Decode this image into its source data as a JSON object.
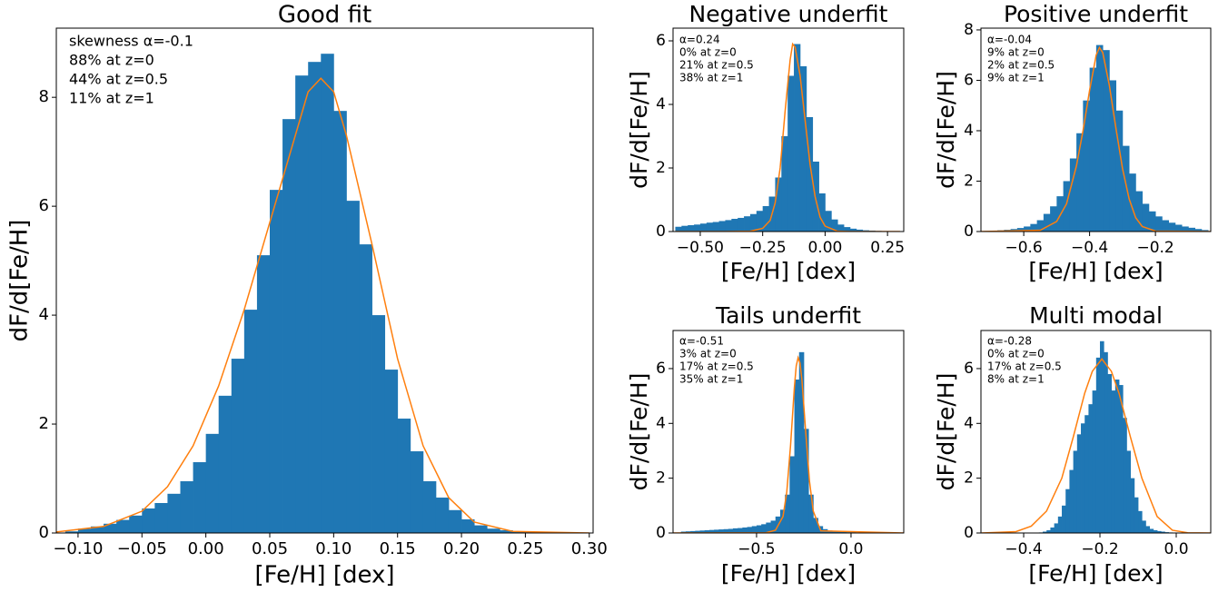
{
  "chart_data": [
    {
      "type": "histogram",
      "title": "Good fit",
      "x_label": "[Fe/H] [dex]",
      "y_label": "dF/d[Fe/H]",
      "color": "#1f77b4",
      "annotations": [
        "skewness α=-0.1",
        "88% at z=0",
        "44% at z=0.5",
        "11% at z=1"
      ],
      "bins": [
        -0.12,
        -0.11,
        -0.1,
        -0.09,
        -0.08,
        -0.07,
        -0.06,
        -0.05,
        -0.04,
        -0.03,
        -0.02,
        -0.01,
        0,
        0.01,
        0.02,
        0.03,
        0.04,
        0.05,
        0.06,
        0.07,
        0.08,
        0.09,
        0.1,
        0.11,
        0.12,
        0.13,
        0.14,
        0.15,
        0.16,
        0.17,
        0.18,
        0.19,
        0.2,
        0.21,
        0.22,
        0.23,
        0.24,
        0.25,
        0.26,
        0.27,
        0.28,
        0.29,
        0.3
      ],
      "counts": [
        0,
        0.03,
        0.08,
        0.12,
        0.17,
        0.24,
        0.32,
        0.45,
        0.55,
        0.72,
        0.95,
        1.3,
        1.82,
        2.52,
        3.2,
        4.1,
        5.1,
        6.3,
        7.6,
        8.4,
        8.65,
        8.8,
        7.75,
        6.1,
        5.3,
        4.0,
        3.0,
        2.1,
        1.5,
        0.95,
        0.65,
        0.42,
        0.25,
        0.14,
        0.08,
        0.05,
        0.03,
        0.02,
        0.01,
        0.005,
        0.005,
        0.005
      ],
      "fit": {
        "color": "#ff7f0e",
        "x": [
          -0.12,
          -0.08,
          -0.05,
          -0.03,
          -0.01,
          0.01,
          0.03,
          0.05,
          0.07,
          0.08,
          0.09,
          0.1,
          0.11,
          0.13,
          0.15,
          0.17,
          0.19,
          0.21,
          0.24,
          0.3
        ],
        "values": [
          0.01,
          0.12,
          0.4,
          0.85,
          1.6,
          2.7,
          4.1,
          5.7,
          7.3,
          8.1,
          8.35,
          8.1,
          7.3,
          5.3,
          3.2,
          1.6,
          0.65,
          0.2,
          0.03,
          0
        ]
      },
      "xlim": [
        -0.117,
        0.303
      ],
      "ylim": [
        0,
        9.27
      ],
      "xticks": [
        {
          "value": -0.1,
          "label": "−0.10"
        },
        {
          "value": -0.05,
          "label": "−0.05"
        },
        {
          "value": 0,
          "label": "0.00"
        },
        {
          "value": 0.05,
          "label": "0.05"
        },
        {
          "value": 0.1,
          "label": "0.10"
        },
        {
          "value": 0.15,
          "label": "0.15"
        },
        {
          "value": 0.2,
          "label": "0.20"
        },
        {
          "value": 0.25,
          "label": "0.25"
        },
        {
          "value": 0.3,
          "label": "0.30"
        }
      ],
      "yticks": [
        0,
        2,
        4,
        6,
        8
      ]
    },
    {
      "type": "histogram",
      "title": "Negative underfit",
      "x_label": "[Fe/H] [dex]",
      "y_label": "dF/d[Fe/H]",
      "color": "#1f77b4",
      "annotations": [
        "α=0.24",
        "0% at z=0",
        "21% at z=0.5",
        "38% at z=1"
      ],
      "bins": [
        -0.6,
        -0.575,
        -0.55,
        -0.525,
        -0.5,
        -0.475,
        -0.45,
        -0.425,
        -0.4,
        -0.375,
        -0.35,
        -0.325,
        -0.3,
        -0.275,
        -0.25,
        -0.225,
        -0.2,
        -0.175,
        -0.15,
        -0.125,
        -0.1,
        -0.075,
        -0.05,
        -0.025,
        0,
        0.025,
        0.05,
        0.075,
        0.1,
        0.125,
        0.15,
        0.175,
        0.2,
        0.225,
        0.25,
        0.275,
        0.3
      ],
      "counts": [
        0.15,
        0.18,
        0.2,
        0.22,
        0.25,
        0.28,
        0.3,
        0.33,
        0.36,
        0.4,
        0.43,
        0.48,
        0.55,
        0.65,
        0.8,
        1.1,
        1.7,
        3.0,
        4.9,
        5.9,
        5.2,
        3.6,
        2.2,
        1.2,
        0.65,
        0.38,
        0.22,
        0.14,
        0.09,
        0.06,
        0.04,
        0.03,
        0.02,
        0.01,
        0.01,
        0.005
      ],
      "fit": {
        "color": "#ff7f0e",
        "x": [
          -0.6,
          -0.4,
          -0.3,
          -0.25,
          -0.22,
          -0.2,
          -0.18,
          -0.16,
          -0.14,
          -0.13,
          -0.12,
          -0.1,
          -0.08,
          -0.06,
          -0.04,
          -0.02,
          0,
          0.05,
          0.1,
          0.3
        ],
        "values": [
          0,
          0,
          0.01,
          0.1,
          0.35,
          0.9,
          2.0,
          3.8,
          5.4,
          5.9,
          5.8,
          4.9,
          3.5,
          2.1,
          1.1,
          0.45,
          0.17,
          0.01,
          0,
          0
        ]
      },
      "xlim": [
        -0.609,
        0.315
      ],
      "ylim": [
        0,
        6.4
      ],
      "xticks": [
        {
          "value": -0.5,
          "label": "−0.50"
        },
        {
          "value": -0.25,
          "label": "−0.25"
        },
        {
          "value": 0,
          "label": "0.00"
        },
        {
          "value": 0.25,
          "label": "0.25"
        }
      ],
      "yticks": [
        0,
        2,
        4,
        6
      ]
    },
    {
      "type": "histogram",
      "title": "Positive underfit",
      "x_label": "[Fe/H] [dex]",
      "y_label": "dF/d[Fe/H]",
      "color": "#1f77b4",
      "annotations": [
        "α=-0.04",
        "9% at z=0",
        "2% at z=0.5",
        "9% at z=1"
      ],
      "bins": [
        -0.72,
        -0.7,
        -0.68,
        -0.66,
        -0.64,
        -0.62,
        -0.6,
        -0.58,
        -0.56,
        -0.54,
        -0.52,
        -0.5,
        -0.48,
        -0.46,
        -0.44,
        -0.42,
        -0.4,
        -0.38,
        -0.36,
        -0.34,
        -0.32,
        -0.3,
        -0.28,
        -0.26,
        -0.24,
        -0.22,
        -0.2,
        -0.18,
        -0.16,
        -0.14,
        -0.12,
        -0.1,
        -0.08,
        -0.06,
        -0.04
      ],
      "counts": [
        0.02,
        0.03,
        0.05,
        0.07,
        0.1,
        0.14,
        0.2,
        0.3,
        0.45,
        0.7,
        1.0,
        1.4,
        2.0,
        2.9,
        3.9,
        5.2,
        6.5,
        7.4,
        7.2,
        6.0,
        4.8,
        3.4,
        2.3,
        1.6,
        1.1,
        0.8,
        0.6,
        0.45,
        0.35,
        0.27,
        0.2,
        0.15,
        0.1,
        0.06
      ],
      "fit": {
        "color": "#ff7f0e",
        "x": [
          -0.73,
          -0.55,
          -0.5,
          -0.47,
          -0.44,
          -0.42,
          -0.4,
          -0.38,
          -0.37,
          -0.36,
          -0.34,
          -0.32,
          -0.3,
          -0.28,
          -0.26,
          -0.24,
          -0.2,
          -0.03
        ],
        "values": [
          0,
          0.05,
          0.4,
          1.1,
          2.6,
          4.0,
          5.6,
          7.0,
          7.3,
          7.1,
          5.8,
          4.1,
          2.5,
          1.3,
          0.55,
          0.2,
          0.02,
          0
        ]
      },
      "xlim": [
        -0.73,
        -0.032
      ],
      "ylim": [
        0,
        8.07
      ],
      "xticks": [
        {
          "value": -0.6,
          "label": "−0.6"
        },
        {
          "value": -0.4,
          "label": "−0.4"
        },
        {
          "value": -0.2,
          "label": "−0.2"
        }
      ],
      "yticks": [
        0,
        2,
        4,
        6,
        8
      ]
    },
    {
      "type": "histogram",
      "title": "Tails underfit",
      "x_label": "[Fe/H] [dex]",
      "y_label": "dF/d[Fe/H]",
      "color": "#1f77b4",
      "annotations": [
        "α=-0.51",
        "3% at z=0",
        "17% at z=0.5",
        "35% at z=1"
      ],
      "bins": [
        -0.9,
        -0.875,
        -0.85,
        -0.825,
        -0.8,
        -0.775,
        -0.75,
        -0.725,
        -0.7,
        -0.675,
        -0.65,
        -0.625,
        -0.6,
        -0.575,
        -0.55,
        -0.525,
        -0.5,
        -0.475,
        -0.45,
        -0.425,
        -0.4,
        -0.375,
        -0.35,
        -0.325,
        -0.3,
        -0.275,
        -0.25,
        -0.225,
        -0.2,
        -0.175,
        -0.15,
        -0.125,
        -0.1,
        -0.075,
        -0.05,
        -0.025,
        0,
        0.025,
        0.05,
        0.075,
        0.1,
        0.125,
        0.15,
        0.175,
        0.2
      ],
      "counts": [
        0.05,
        0.06,
        0.07,
        0.08,
        0.09,
        0.1,
        0.11,
        0.12,
        0.13,
        0.14,
        0.15,
        0.17,
        0.18,
        0.2,
        0.22,
        0.25,
        0.28,
        0.32,
        0.38,
        0.45,
        0.6,
        0.85,
        1.4,
        2.8,
        5.6,
        6.6,
        3.8,
        1.4,
        0.55,
        0.25,
        0.14,
        0.09,
        0.06,
        0.05,
        0.04,
        0.03,
        0.03,
        0.02,
        0.02,
        0.015,
        0.01,
        0.01,
        0.01,
        0.005
      ],
      "fit": {
        "color": "#ff7f0e",
        "x": [
          -0.94,
          -0.45,
          -0.4,
          -0.36,
          -0.34,
          -0.32,
          -0.3,
          -0.29,
          -0.28,
          -0.27,
          -0.26,
          -0.24,
          -0.22,
          -0.2,
          -0.16,
          0.28
        ],
        "values": [
          0,
          0.01,
          0.1,
          0.6,
          1.5,
          3.2,
          5.3,
          6.1,
          6.4,
          6.2,
          5.6,
          3.7,
          1.9,
          0.8,
          0.08,
          0
        ]
      },
      "xlim": [
        -0.942,
        0.279
      ],
      "ylim": [
        0,
        7.39
      ],
      "xticks": [
        {
          "value": -0.5,
          "label": "−0.5"
        },
        {
          "value": 0,
          "label": "0.0"
        }
      ],
      "yticks": [
        0,
        2,
        4,
        6
      ]
    },
    {
      "type": "histogram",
      "title": "Multi modal",
      "x_label": "[Fe/H] [dex]",
      "y_label": "dF/d[Fe/H]",
      "color": "#1f77b4",
      "annotations": [
        "α=-0.28",
        "0% at z=0",
        "17% at z=0.5",
        "8% at z=1"
      ],
      "bins": [
        -0.36,
        -0.35,
        -0.34,
        -0.33,
        -0.32,
        -0.31,
        -0.3,
        -0.29,
        -0.28,
        -0.27,
        -0.26,
        -0.25,
        -0.24,
        -0.23,
        -0.22,
        -0.21,
        -0.2,
        -0.19,
        -0.18,
        -0.17,
        -0.16,
        -0.15,
        -0.14,
        -0.13,
        -0.12,
        -0.11,
        -0.1,
        -0.09,
        -0.08,
        -0.07,
        -0.06,
        -0.05,
        -0.04,
        -0.03,
        -0.02,
        -0.01,
        0,
        0.01,
        0.02,
        0.03,
        0.04,
        0.05,
        0.06
      ],
      "counts": [
        0.02,
        0.05,
        0.1,
        0.2,
        0.35,
        0.6,
        1.0,
        1.6,
        2.3,
        3.0,
        3.6,
        4.0,
        4.3,
        4.7,
        5.2,
        6.4,
        7.0,
        6.6,
        5.8,
        5.2,
        5.6,
        5.4,
        4.2,
        3.0,
        2.0,
        1.3,
        0.8,
        0.45,
        0.25,
        0.15,
        0.1,
        0.07,
        0.05,
        0.03,
        0.02,
        0.01,
        0.01,
        0.01,
        0.005,
        0.005,
        0.005,
        0.005
      ],
      "fit": {
        "color": "#ff7f0e",
        "x": [
          -0.51,
          -0.42,
          -0.38,
          -0.34,
          -0.3,
          -0.27,
          -0.24,
          -0.22,
          -0.195,
          -0.17,
          -0.15,
          -0.12,
          -0.09,
          -0.05,
          -0.01,
          0.03,
          0.09
        ],
        "values": [
          0,
          0.05,
          0.25,
          0.8,
          2.0,
          3.5,
          5.1,
          5.9,
          6.35,
          5.9,
          5.1,
          3.5,
          2.0,
          0.6,
          0.1,
          0.01,
          0
        ]
      },
      "xlim": [
        -0.512,
        0.0905
      ],
      "ylim": [
        0,
        7.39
      ],
      "xticks": [
        {
          "value": -0.4,
          "label": "−0.4"
        },
        {
          "value": -0.2,
          "label": "−0.2"
        },
        {
          "value": 0,
          "label": "0.0"
        }
      ],
      "yticks": [
        0,
        2,
        4,
        6
      ]
    }
  ]
}
